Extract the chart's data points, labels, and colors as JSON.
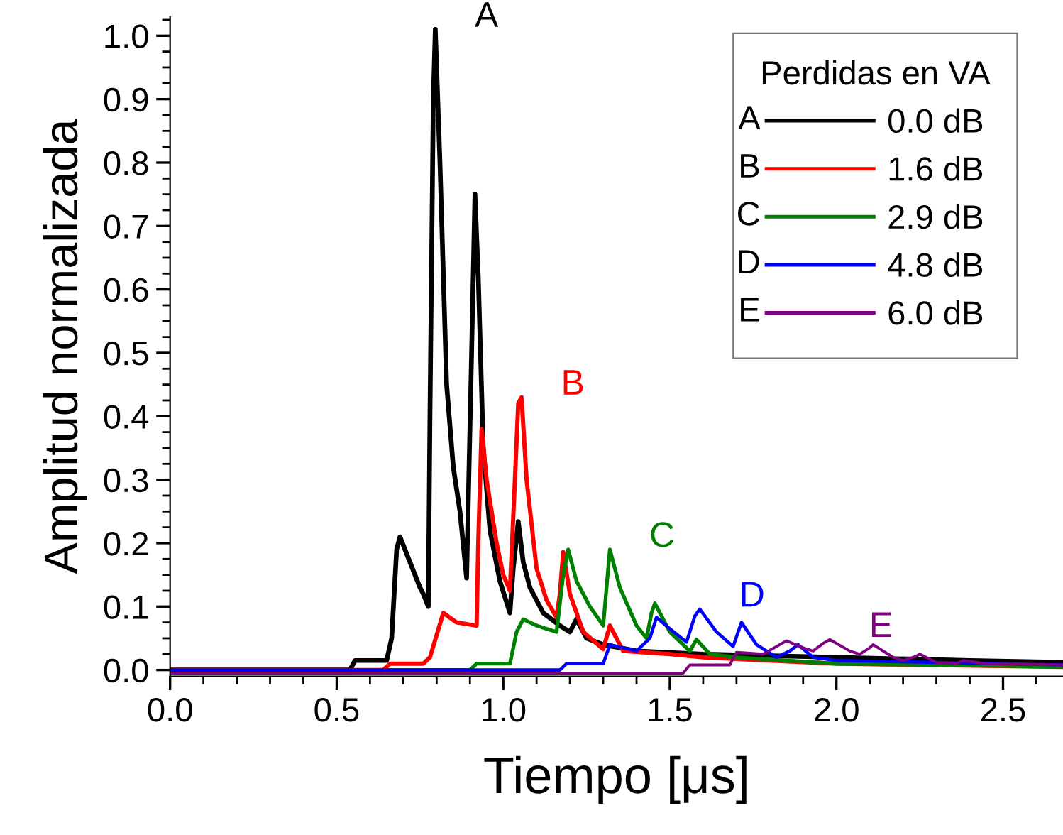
{
  "chart_data": {
    "type": "line",
    "xlabel": "Tiempo [μs]",
    "ylabel": "Amplitud normalizada",
    "legend_title": "Perdidas en VA",
    "legend": "top right",
    "grid": false,
    "marker": "none",
    "line_style": "solid",
    "xlim": [
      0,
      2.68
    ],
    "xticks": [
      {
        "value": 0,
        "label": "0.0"
      },
      {
        "value": 0.5,
        "label": "0.5"
      },
      {
        "value": 1,
        "label": "1.0"
      },
      {
        "value": 1.5,
        "label": "1.5"
      },
      {
        "value": 2,
        "label": "2.0"
      },
      {
        "value": 2.5,
        "label": "2.5"
      }
    ],
    "ylim": [
      -0.01,
      1.03
    ],
    "yticks": [
      {
        "value": 0,
        "label": "0.0"
      },
      0.1,
      0.2,
      0.3,
      0.4,
      0.5,
      0.6,
      0.7,
      0.8,
      0.9,
      {
        "value": 1,
        "label": "1.0"
      }
    ],
    "series": [
      {
        "name": "0.0 dB",
        "color": "#000000",
        "x": [
          0,
          0.54,
          0.555,
          0.65,
          0.665,
          0.68,
          0.69,
          0.72,
          0.75,
          0.76,
          0.775,
          0.78,
          0.79,
          0.796,
          0.81,
          0.83,
          0.85,
          0.87,
          0.89,
          0.905,
          0.915,
          0.925,
          0.94,
          0.96,
          0.99,
          1.02,
          1.03,
          1.045,
          1.06,
          1.08,
          1.12,
          1.17,
          1.2,
          1.22,
          1.25,
          1.3,
          1.4,
          1.6,
          2.0,
          2.4,
          2.68
        ],
        "values": [
          0,
          0,
          0.015,
          0.015,
          0.05,
          0.19,
          0.21,
          0.17,
          0.13,
          0.12,
          0.1,
          0.4,
          0.9,
          1.01,
          0.8,
          0.45,
          0.32,
          0.25,
          0.145,
          0.5,
          0.75,
          0.62,
          0.35,
          0.22,
          0.14,
          0.09,
          0.16,
          0.234,
          0.17,
          0.13,
          0.09,
          0.07,
          0.06,
          0.08,
          0.05,
          0.04,
          0.03,
          0.025,
          0.02,
          0.015,
          0.012
        ]
      },
      {
        "name": "1.6 dB",
        "color": "#ff0000",
        "x": [
          0,
          0.64,
          0.66,
          0.76,
          0.78,
          0.82,
          0.86,
          0.92,
          0.925,
          0.935,
          0.95,
          0.98,
          1.0,
          1.02,
          1.035,
          1.045,
          1.055,
          1.07,
          1.1,
          1.13,
          1.16,
          1.17,
          1.18,
          1.2,
          1.24,
          1.3,
          1.32,
          1.36,
          1.5,
          1.6,
          2.0,
          2.68
        ],
        "values": [
          0,
          0,
          0.01,
          0.01,
          0.02,
          0.09,
          0.075,
          0.07,
          0.2,
          0.38,
          0.3,
          0.2,
          0.15,
          0.125,
          0.3,
          0.42,
          0.43,
          0.3,
          0.16,
          0.11,
          0.083,
          0.12,
          0.186,
          0.12,
          0.06,
          0.033,
          0.07,
          0.03,
          0.025,
          0.02,
          0.01,
          0.005
        ]
      },
      {
        "name": "2.9 dB",
        "color": "#008000",
        "x": [
          0,
          0.9,
          0.92,
          1.02,
          1.04,
          1.06,
          1.1,
          1.16,
          1.18,
          1.195,
          1.22,
          1.26,
          1.3,
          1.32,
          1.35,
          1.4,
          1.43,
          1.445,
          1.455,
          1.5,
          1.56,
          1.58,
          1.62,
          1.7,
          2.0,
          2.68
        ],
        "values": [
          0,
          0,
          0.01,
          0.01,
          0.06,
          0.08,
          0.07,
          0.06,
          0.15,
          0.19,
          0.14,
          0.1,
          0.07,
          0.19,
          0.13,
          0.07,
          0.05,
          0.09,
          0.105,
          0.06,
          0.03,
          0.048,
          0.025,
          0.02,
          0.01,
          0.005
        ]
      },
      {
        "name": "4.8 dB",
        "color": "#0000ff",
        "x": [
          0,
          1.17,
          1.19,
          1.3,
          1.32,
          1.4,
          1.44,
          1.46,
          1.5,
          1.55,
          1.575,
          1.59,
          1.64,
          1.69,
          1.705,
          1.715,
          1.76,
          1.82,
          1.86,
          1.885,
          1.93,
          2.0,
          2.68
        ],
        "values": [
          0,
          0,
          0.01,
          0.01,
          0.04,
          0.03,
          0.05,
          0.083,
          0.065,
          0.044,
          0.085,
          0.096,
          0.06,
          0.037,
          0.06,
          0.075,
          0.04,
          0.02,
          0.03,
          0.04,
          0.02,
          0.015,
          0.008
        ]
      },
      {
        "name": "6.0 dB",
        "color": "#800080",
        "x": [
          0,
          1.54,
          1.56,
          1.68,
          1.7,
          1.78,
          1.83,
          1.85,
          1.9,
          1.93,
          1.96,
          1.98,
          2.04,
          2.07,
          2.1,
          2.11,
          2.17,
          2.2,
          2.24,
          2.25,
          2.3,
          2.36,
          2.38,
          2.45,
          2.68
        ],
        "values": [
          -0.005,
          -0.005,
          0.008,
          0.008,
          0.028,
          0.025,
          0.04,
          0.046,
          0.035,
          0.03,
          0.042,
          0.048,
          0.03,
          0.025,
          0.035,
          0.04,
          0.02,
          0.015,
          0.022,
          0.025,
          0.012,
          0.01,
          0.015,
          0.01,
          0.008
        ]
      }
    ],
    "annotations": [
      "A",
      "B",
      "C",
      "D",
      "E"
    ]
  }
}
